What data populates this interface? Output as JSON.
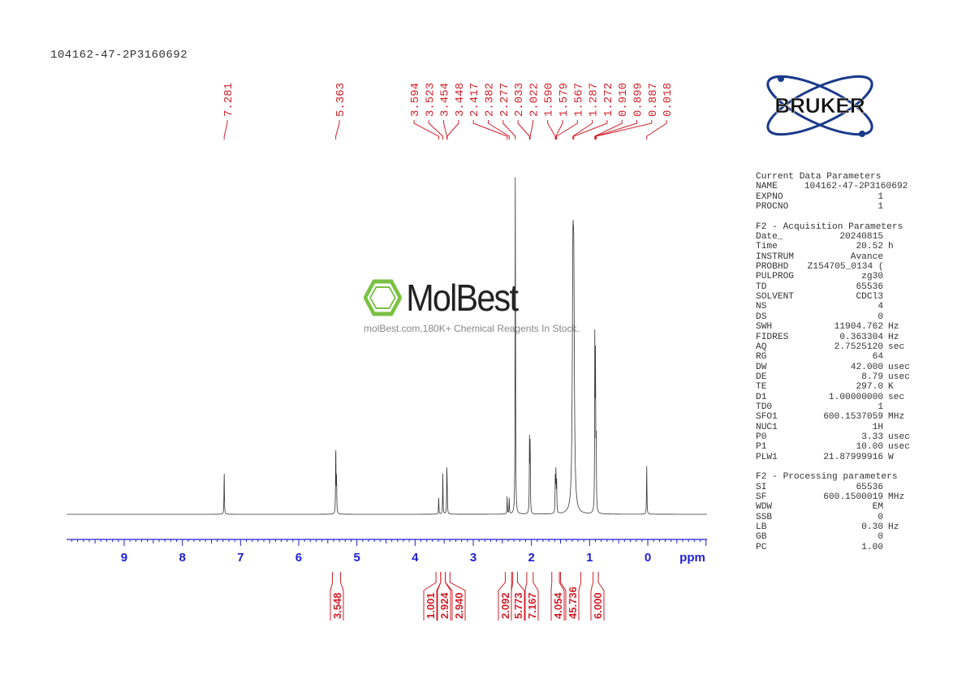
{
  "title": "104162-47-2P3160692",
  "watermark": {
    "brand": "MolBest",
    "tagline": "molBest.com,180K+ Chemical Reagents In Stock."
  },
  "logo": {
    "text": "BRUKER",
    "color": "#1a3a8a"
  },
  "colors": {
    "spectrum": "#333333",
    "axis": "#1f1fd0",
    "labels": "#d0202a"
  },
  "parameters": {
    "current": {
      "heading": "Current Data Parameters",
      "rows": [
        [
          "NAME",
          "104162-47-2P3160692",
          ""
        ],
        [
          "EXPNO",
          "1",
          ""
        ],
        [
          "PROCNO",
          "1",
          ""
        ]
      ]
    },
    "acquisition": {
      "heading": "F2 - Acquisition Parameters",
      "rows": [
        [
          "Date_",
          "20240815",
          ""
        ],
        [
          "Time",
          "20.52",
          "h"
        ],
        [
          "INSTRUM",
          "Avance",
          ""
        ],
        [
          "PROBHD",
          "Z154705_0134 (",
          ""
        ],
        [
          "PULPROG",
          "zg30",
          ""
        ],
        [
          "TD",
          "65536",
          ""
        ],
        [
          "SOLVENT",
          "CDCl3",
          ""
        ],
        [
          "NS",
          "4",
          ""
        ],
        [
          "DS",
          "0",
          ""
        ],
        [
          "SWH",
          "11904.762",
          "Hz"
        ],
        [
          "FIDRES",
          "0.363304",
          "Hz"
        ],
        [
          "AQ",
          "2.7525120",
          "sec"
        ],
        [
          "RG",
          "64",
          ""
        ],
        [
          "DW",
          "42.000",
          "usec"
        ],
        [
          "DE",
          "8.79",
          "usec"
        ],
        [
          "TE",
          "297.0",
          "K"
        ],
        [
          "D1",
          "1.00000000",
          "sec"
        ],
        [
          "TD0",
          "1",
          ""
        ],
        [
          "SFO1",
          "600.1537059",
          "MHz"
        ],
        [
          "NUC1",
          "1H",
          ""
        ],
        [
          "P0",
          "3.33",
          "usec"
        ],
        [
          "P1",
          "10.00",
          "usec"
        ],
        [
          "PLW1",
          "21.87999916",
          "W"
        ]
      ]
    },
    "processing": {
      "heading": "F2 - Processing parameters",
      "rows": [
        [
          "SI",
          "65536",
          ""
        ],
        [
          "SF",
          "600.1500019",
          "MHz"
        ],
        [
          "WDW",
          "EM",
          ""
        ],
        [
          "SSB",
          "0",
          ""
        ],
        [
          "LB",
          "0.30",
          "Hz"
        ],
        [
          "GB",
          "0",
          ""
        ],
        [
          "PC",
          "1.00",
          ""
        ]
      ]
    }
  },
  "chart_data": {
    "type": "line",
    "xlabel": "ppm",
    "xlim": [
      10,
      -1
    ],
    "x_reversed": true,
    "xticks": [
      "9",
      "8",
      "7",
      "6",
      "5",
      "4",
      "3",
      "2",
      "1",
      "0"
    ],
    "grid": false,
    "peak_labels": [
      "7.281",
      "5.363",
      "3.594",
      "3.523",
      "3.454",
      "3.448",
      "2.417",
      "2.382",
      "2.277",
      "2.033",
      "2.022",
      "1.590",
      "1.579",
      "1.567",
      "1.287",
      "1.272",
      "0.910",
      "0.899",
      "0.887",
      "0.018"
    ],
    "peaks": [
      {
        "ppm": 7.281,
        "intensity": 0.125
      },
      {
        "ppm": 5.363,
        "intensity": 0.2
      },
      {
        "ppm": 5.35,
        "intensity": 0.1
      },
      {
        "ppm": 3.594,
        "intensity": 0.05
      },
      {
        "ppm": 3.523,
        "intensity": 0.115
      },
      {
        "ppm": 3.454,
        "intensity": 0.115
      },
      {
        "ppm": 3.448,
        "intensity": 0.06
      },
      {
        "ppm": 2.417,
        "intensity": 0.05
      },
      {
        "ppm": 2.382,
        "intensity": 0.045
      },
      {
        "ppm": 2.277,
        "intensity": 1.0
      },
      {
        "ppm": 2.033,
        "intensity": 0.21
      },
      {
        "ppm": 2.022,
        "intensity": 0.2
      },
      {
        "ppm": 1.59,
        "intensity": 0.1
      },
      {
        "ppm": 1.579,
        "intensity": 0.12
      },
      {
        "ppm": 1.567,
        "intensity": 0.09
      },
      {
        "ppm": 1.287,
        "intensity": 0.6
      },
      {
        "ppm": 1.272,
        "intensity": 0.55
      },
      {
        "ppm": 0.91,
        "intensity": 0.48
      },
      {
        "ppm": 0.899,
        "intensity": 0.42
      },
      {
        "ppm": 0.887,
        "intensity": 0.2
      },
      {
        "ppm": 0.018,
        "intensity": 0.14
      }
    ],
    "integrals": [
      {
        "value": "3.548",
        "from": 5.42,
        "to": 5.28
      },
      {
        "value": "1.001",
        "from": 3.64,
        "to": 3.56
      },
      {
        "value": "2.924",
        "from": 3.56,
        "to": 3.48
      },
      {
        "value": "2.940",
        "from": 3.48,
        "to": 3.4
      },
      {
        "value": "2.092",
        "from": 2.45,
        "to": 2.34
      },
      {
        "value": "5.773",
        "from": 2.32,
        "to": 2.24
      },
      {
        "value": "7.167",
        "from": 2.08,
        "to": 1.97
      },
      {
        "value": "4.054",
        "from": 1.65,
        "to": 1.52
      },
      {
        "value": "45.736",
        "from": 1.5,
        "to": 1.15
      },
      {
        "value": "6.000",
        "from": 0.94,
        "to": 0.85
      }
    ]
  }
}
